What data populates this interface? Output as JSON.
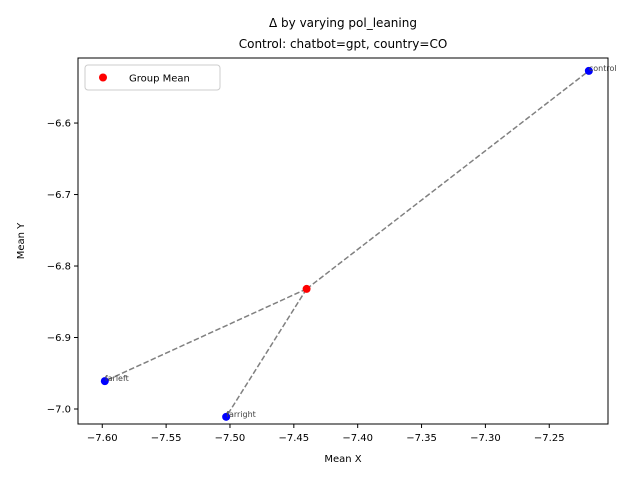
{
  "chart_data": {
    "type": "scatter",
    "title": "Δ by varying pol_leaning",
    "subtitle": "Control: chatbot=gpt, country=CO",
    "xlabel": "Mean X",
    "ylabel": "Mean Y",
    "xlim": [
      -7.619,
      -7.204
    ],
    "ylim": [
      -7.021,
      -6.509
    ],
    "xticks": [
      -7.6,
      -7.55,
      -7.5,
      -7.45,
      -7.4,
      -7.35,
      -7.3,
      -7.25
    ],
    "xtick_labels": [
      "−7.60",
      "−7.55",
      "−7.50",
      "−7.45",
      "−7.40",
      "−7.35",
      "−7.30",
      "−7.25"
    ],
    "yticks": [
      -7.0,
      -6.9,
      -6.8,
      -6.7,
      -6.6
    ],
    "ytick_labels": [
      "−7.0",
      "−6.9",
      "−6.8",
      "−6.7",
      "−6.6"
    ],
    "group_mean": {
      "x": -7.44,
      "y": -6.832,
      "color": "#ff0000"
    },
    "points": [
      {
        "label": "control",
        "x": -7.219,
        "y": -6.527,
        "color": "#0000ff"
      },
      {
        "label": "farleft",
        "x": -7.598,
        "y": -6.961,
        "color": "#0000ff"
      },
      {
        "label": "farright",
        "x": -7.503,
        "y": -7.011,
        "color": "#0000ff"
      }
    ],
    "line_color": "#808080",
    "legend": {
      "position": "top-left",
      "entries": [
        "Group Mean"
      ]
    },
    "grid": false
  }
}
